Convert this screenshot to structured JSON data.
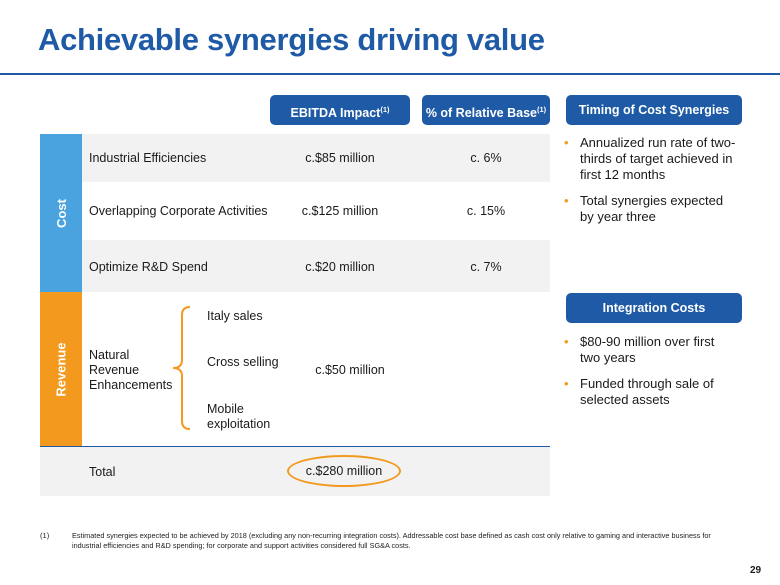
{
  "title": "Achievable synergies driving value",
  "headers": {
    "ebitda": "EBITDA Impact",
    "ebitda_note": "(1)",
    "relative": "% of Relative Base",
    "relative_note": "(1)",
    "timing": "Timing of Cost Synergies",
    "integration": "Integration Costs"
  },
  "sections": {
    "cost": "Cost",
    "revenue": "Revenue"
  },
  "cost_rows": [
    {
      "label": "Industrial Efficiencies",
      "ebitda": "c.$85 million",
      "relative": "c. 6%"
    },
    {
      "label": "Overlapping Corporate Activities",
      "ebitda": "c.$125 million",
      "relative": "c. 15%"
    },
    {
      "label": "Optimize R&D Spend",
      "ebitda": "c.$20 million",
      "relative": "c. 7%"
    }
  ],
  "revenue": {
    "label_line1": "Natural",
    "label_line2": "Revenue",
    "label_line3": "Enhancements",
    "items": [
      "Italy sales",
      "Cross selling",
      "Mobile",
      "exploitation"
    ],
    "ebitda": "c.$50 million"
  },
  "total": {
    "label": "Total",
    "ebitda": "c.$280 million"
  },
  "timing_bullets": [
    [
      "Annualized run rate of two-",
      "thirds of target achieved in",
      "first 12 months"
    ],
    [
      "Total synergies expected",
      "by year three"
    ]
  ],
  "integration_bullets": [
    [
      "$80-90 million over first",
      "two years"
    ],
    [
      "Funded through sale of",
      "selected assets"
    ]
  ],
  "footnote": {
    "marker": "(1)",
    "line1": "Estimated synergies expected to be achieved by 2018 (excluding any non-recurring integration costs). Addressable cost base defined as cash cost only relative to gaming and interactive business for",
    "line2": "industrial efficiencies and R&D spending; for corporate and support activities considered full SG&A costs."
  },
  "page_number": "29",
  "colors": {
    "brand_blue": "#1f5aa6",
    "cost_blue": "#4aa3df",
    "revenue_orange": "#f39a1e",
    "band_gray": "#f2f2f2",
    "highlight_orange": "#f39a1e"
  }
}
